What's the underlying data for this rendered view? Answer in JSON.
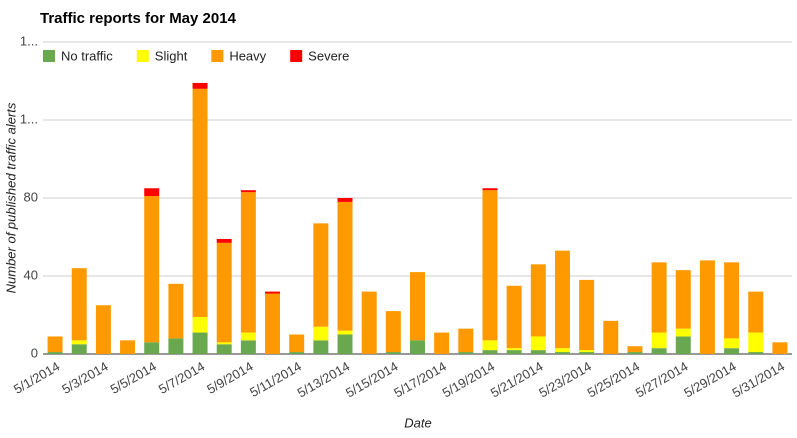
{
  "chart_data": {
    "type": "bar",
    "stacked": true,
    "title": "Traffic reports for May 2014",
    "x_label": "Date",
    "y_label": "Number of published traffic alerts",
    "categories": [
      "5/1/2014",
      null,
      "5/3/2014",
      null,
      "5/5/2014",
      null,
      "5/7/2014",
      null,
      "5/9/2014",
      null,
      "5/11/2014",
      null,
      "5/13/2014",
      null,
      "5/15/2014",
      null,
      "5/17/2014",
      null,
      "5/19/2014",
      null,
      "5/21/2014",
      null,
      "5/23/2014",
      null,
      "5/25/2014",
      null,
      "5/27/2014",
      null,
      "5/29/2014",
      null,
      "5/31/2014"
    ],
    "series": [
      {
        "name": "No traffic",
        "color": "#6aa84f",
        "values": [
          1,
          5,
          0,
          0,
          6,
          8,
          11,
          5,
          7,
          0,
          1,
          7,
          10,
          0,
          1,
          7,
          0,
          1,
          2,
          2,
          2,
          1,
          1,
          0,
          1,
          3,
          9,
          0,
          3,
          1,
          0
        ]
      },
      {
        "name": "Slight",
        "color": "#ffff00",
        "values": [
          0,
          2,
          0,
          0,
          0,
          0,
          8,
          1,
          4,
          0,
          0,
          7,
          2,
          0,
          0,
          0,
          0,
          0,
          5,
          1,
          7,
          2,
          1,
          0,
          0,
          8,
          4,
          0,
          5,
          10,
          0
        ]
      },
      {
        "name": "Heavy",
        "color": "#ff9900",
        "values": [
          8,
          37,
          25,
          7,
          75,
          28,
          117,
          51,
          72,
          31,
          9,
          53,
          66,
          32,
          21,
          35,
          11,
          12,
          77,
          32,
          37,
          50,
          36,
          17,
          3,
          36,
          30,
          48,
          39,
          21,
          6
        ]
      },
      {
        "name": "Severe",
        "color": "#ff0000",
        "values": [
          0,
          0,
          0,
          0,
          4,
          0,
          3,
          2,
          1,
          1,
          0,
          0,
          2,
          0,
          0,
          0,
          0,
          0,
          1,
          0,
          0,
          0,
          0,
          0,
          0,
          0,
          0,
          0,
          0,
          0,
          0
        ]
      }
    ],
    "ylim": [
      0,
      160
    ],
    "yticks": [
      0,
      40,
      80,
      {
        "value": 120,
        "label": "1..."
      },
      {
        "value": 160,
        "label": "1..."
      }
    ],
    "grid": true,
    "legend_position": "top-left"
  }
}
